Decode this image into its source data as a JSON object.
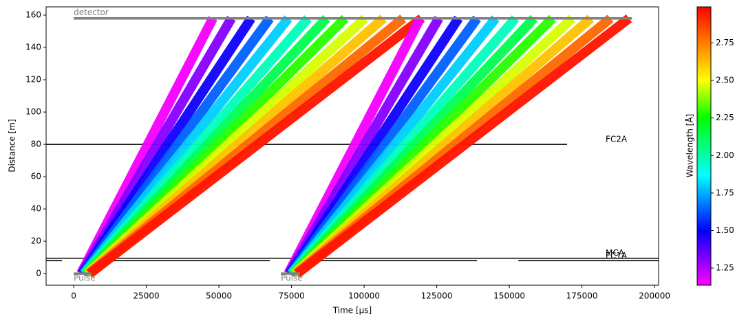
{
  "chart_data": {
    "type": "tof",
    "xlabel": "Time [µs]",
    "ylabel": "Distance [m]",
    "xlim": [
      -9500,
      201400
    ],
    "ylim": [
      -7.2,
      165.1
    ],
    "xticks": [
      0,
      25000,
      50000,
      75000,
      100000,
      125000,
      150000,
      175000,
      200000
    ],
    "yticks": [
      0,
      20,
      40,
      60,
      80,
      100,
      120,
      140,
      160
    ],
    "detector": {
      "label": "detector",
      "distance": 158,
      "x": [
        0,
        192200
      ],
      "color": "#808080"
    },
    "pulses": [
      {
        "label": "Pulse",
        "distance": 0,
        "x": [
          0,
          6160
        ],
        "color": "#808080"
      },
      {
        "label": "Pulse",
        "distance": 0,
        "x": [
          71330,
          77960
        ],
        "color": "#808080"
      }
    ],
    "choppers": [
      {
        "label": "FC2A",
        "distance": 80,
        "closed": [
          [
            -9500,
            169900
          ]
        ]
      },
      {
        "label": "MCA",
        "distance": 9.5,
        "closed": [
          [
            -9500,
            201400
          ]
        ]
      },
      {
        "label": "FC1A",
        "distance": 8.0,
        "closed": [
          [
            -9500,
            -4030
          ],
          [
            9716,
            67536
          ],
          [
            81750,
            138860
          ],
          [
            153080,
            201400
          ]
        ]
      }
    ],
    "rays": [
      {
        "wavelength": 1.15,
        "x": [
          2500,
          47930
        ],
        "values": [
          0,
          158
        ]
      },
      {
        "wavelength": 1.31,
        "x": [
          2770,
          54320
        ],
        "values": [
          0,
          158
        ]
      },
      {
        "wavelength": 1.48,
        "x": [
          3060,
          61110
        ],
        "values": [
          0,
          158
        ]
      },
      {
        "wavelength": 1.64,
        "x": [
          3330,
          67500
        ],
        "values": [
          0,
          158
        ]
      },
      {
        "wavelength": 1.8,
        "x": [
          3610,
          73890
        ],
        "values": [
          0,
          158
        ]
      },
      {
        "wavelength": 1.97,
        "x": [
          3890,
          80680
        ],
        "values": [
          0,
          158
        ]
      },
      {
        "wavelength": 2.13,
        "x": [
          4170,
          87070
        ],
        "values": [
          0,
          158
        ]
      },
      {
        "wavelength": 2.29,
        "x": [
          4440,
          93460
        ],
        "values": [
          0,
          158
        ]
      },
      {
        "wavelength": 2.46,
        "x": [
          4730,
          100250
        ],
        "values": [
          0,
          158
        ]
      },
      {
        "wavelength": 2.62,
        "x": [
          5000,
          106640
        ],
        "values": [
          0,
          158
        ]
      },
      {
        "wavelength": 2.79,
        "x": [
          5290,
          113430
        ],
        "values": [
          0,
          158
        ]
      },
      {
        "wavelength": 2.95,
        "x": [
          5560,
          119820
        ],
        "values": [
          0,
          158
        ]
      },
      {
        "wavelength": 1.15,
        "x": [
          73900,
          119330
        ],
        "values": [
          0,
          158
        ]
      },
      {
        "wavelength": 1.31,
        "x": [
          74170,
          125720
        ],
        "values": [
          0,
          158
        ]
      },
      {
        "wavelength": 1.48,
        "x": [
          74460,
          132510
        ],
        "values": [
          0,
          158
        ]
      },
      {
        "wavelength": 1.64,
        "x": [
          74730,
          138900
        ],
        "values": [
          0,
          158
        ]
      },
      {
        "wavelength": 1.8,
        "x": [
          75010,
          145290
        ],
        "values": [
          0,
          158
        ]
      },
      {
        "wavelength": 1.97,
        "x": [
          75290,
          152080
        ],
        "values": [
          0,
          158
        ]
      },
      {
        "wavelength": 2.13,
        "x": [
          75570,
          158470
        ],
        "values": [
          0,
          158
        ]
      },
      {
        "wavelength": 2.29,
        "x": [
          75840,
          164860
        ],
        "values": [
          0,
          158
        ]
      },
      {
        "wavelength": 2.46,
        "x": [
          76130,
          171650
        ],
        "values": [
          0,
          158
        ]
      },
      {
        "wavelength": 2.62,
        "x": [
          76400,
          178040
        ],
        "values": [
          0,
          158
        ]
      },
      {
        "wavelength": 2.79,
        "x": [
          76690,
          184830
        ],
        "values": [
          0,
          158
        ]
      },
      {
        "wavelength": 2.95,
        "x": [
          76960,
          191220
        ],
        "values": [
          0,
          158
        ]
      }
    ],
    "colorbar": {
      "label": "Wavelength [Å]",
      "lim": [
        1.136,
        2.99
      ],
      "ticks": [
        1.25,
        {
          "value": 1.5,
          "label": "1.50"
        },
        1.75,
        {
          "value": 2,
          "label": "2.00"
        },
        2.25,
        {
          "value": 2.5,
          "label": "2.50"
        },
        2.75
      ],
      "colormap": [
        {
          "value": 1.136,
          "color": "#ff00ff"
        },
        {
          "value": 1.5,
          "color": "#0000ff"
        },
        {
          "value": 1.87,
          "color": "#00ffff"
        },
        {
          "value": 2.25,
          "color": "#00ff00"
        },
        {
          "value": 2.5,
          "color": "#ffff00"
        },
        {
          "value": 2.99,
          "color": "#ff0000"
        }
      ]
    }
  }
}
